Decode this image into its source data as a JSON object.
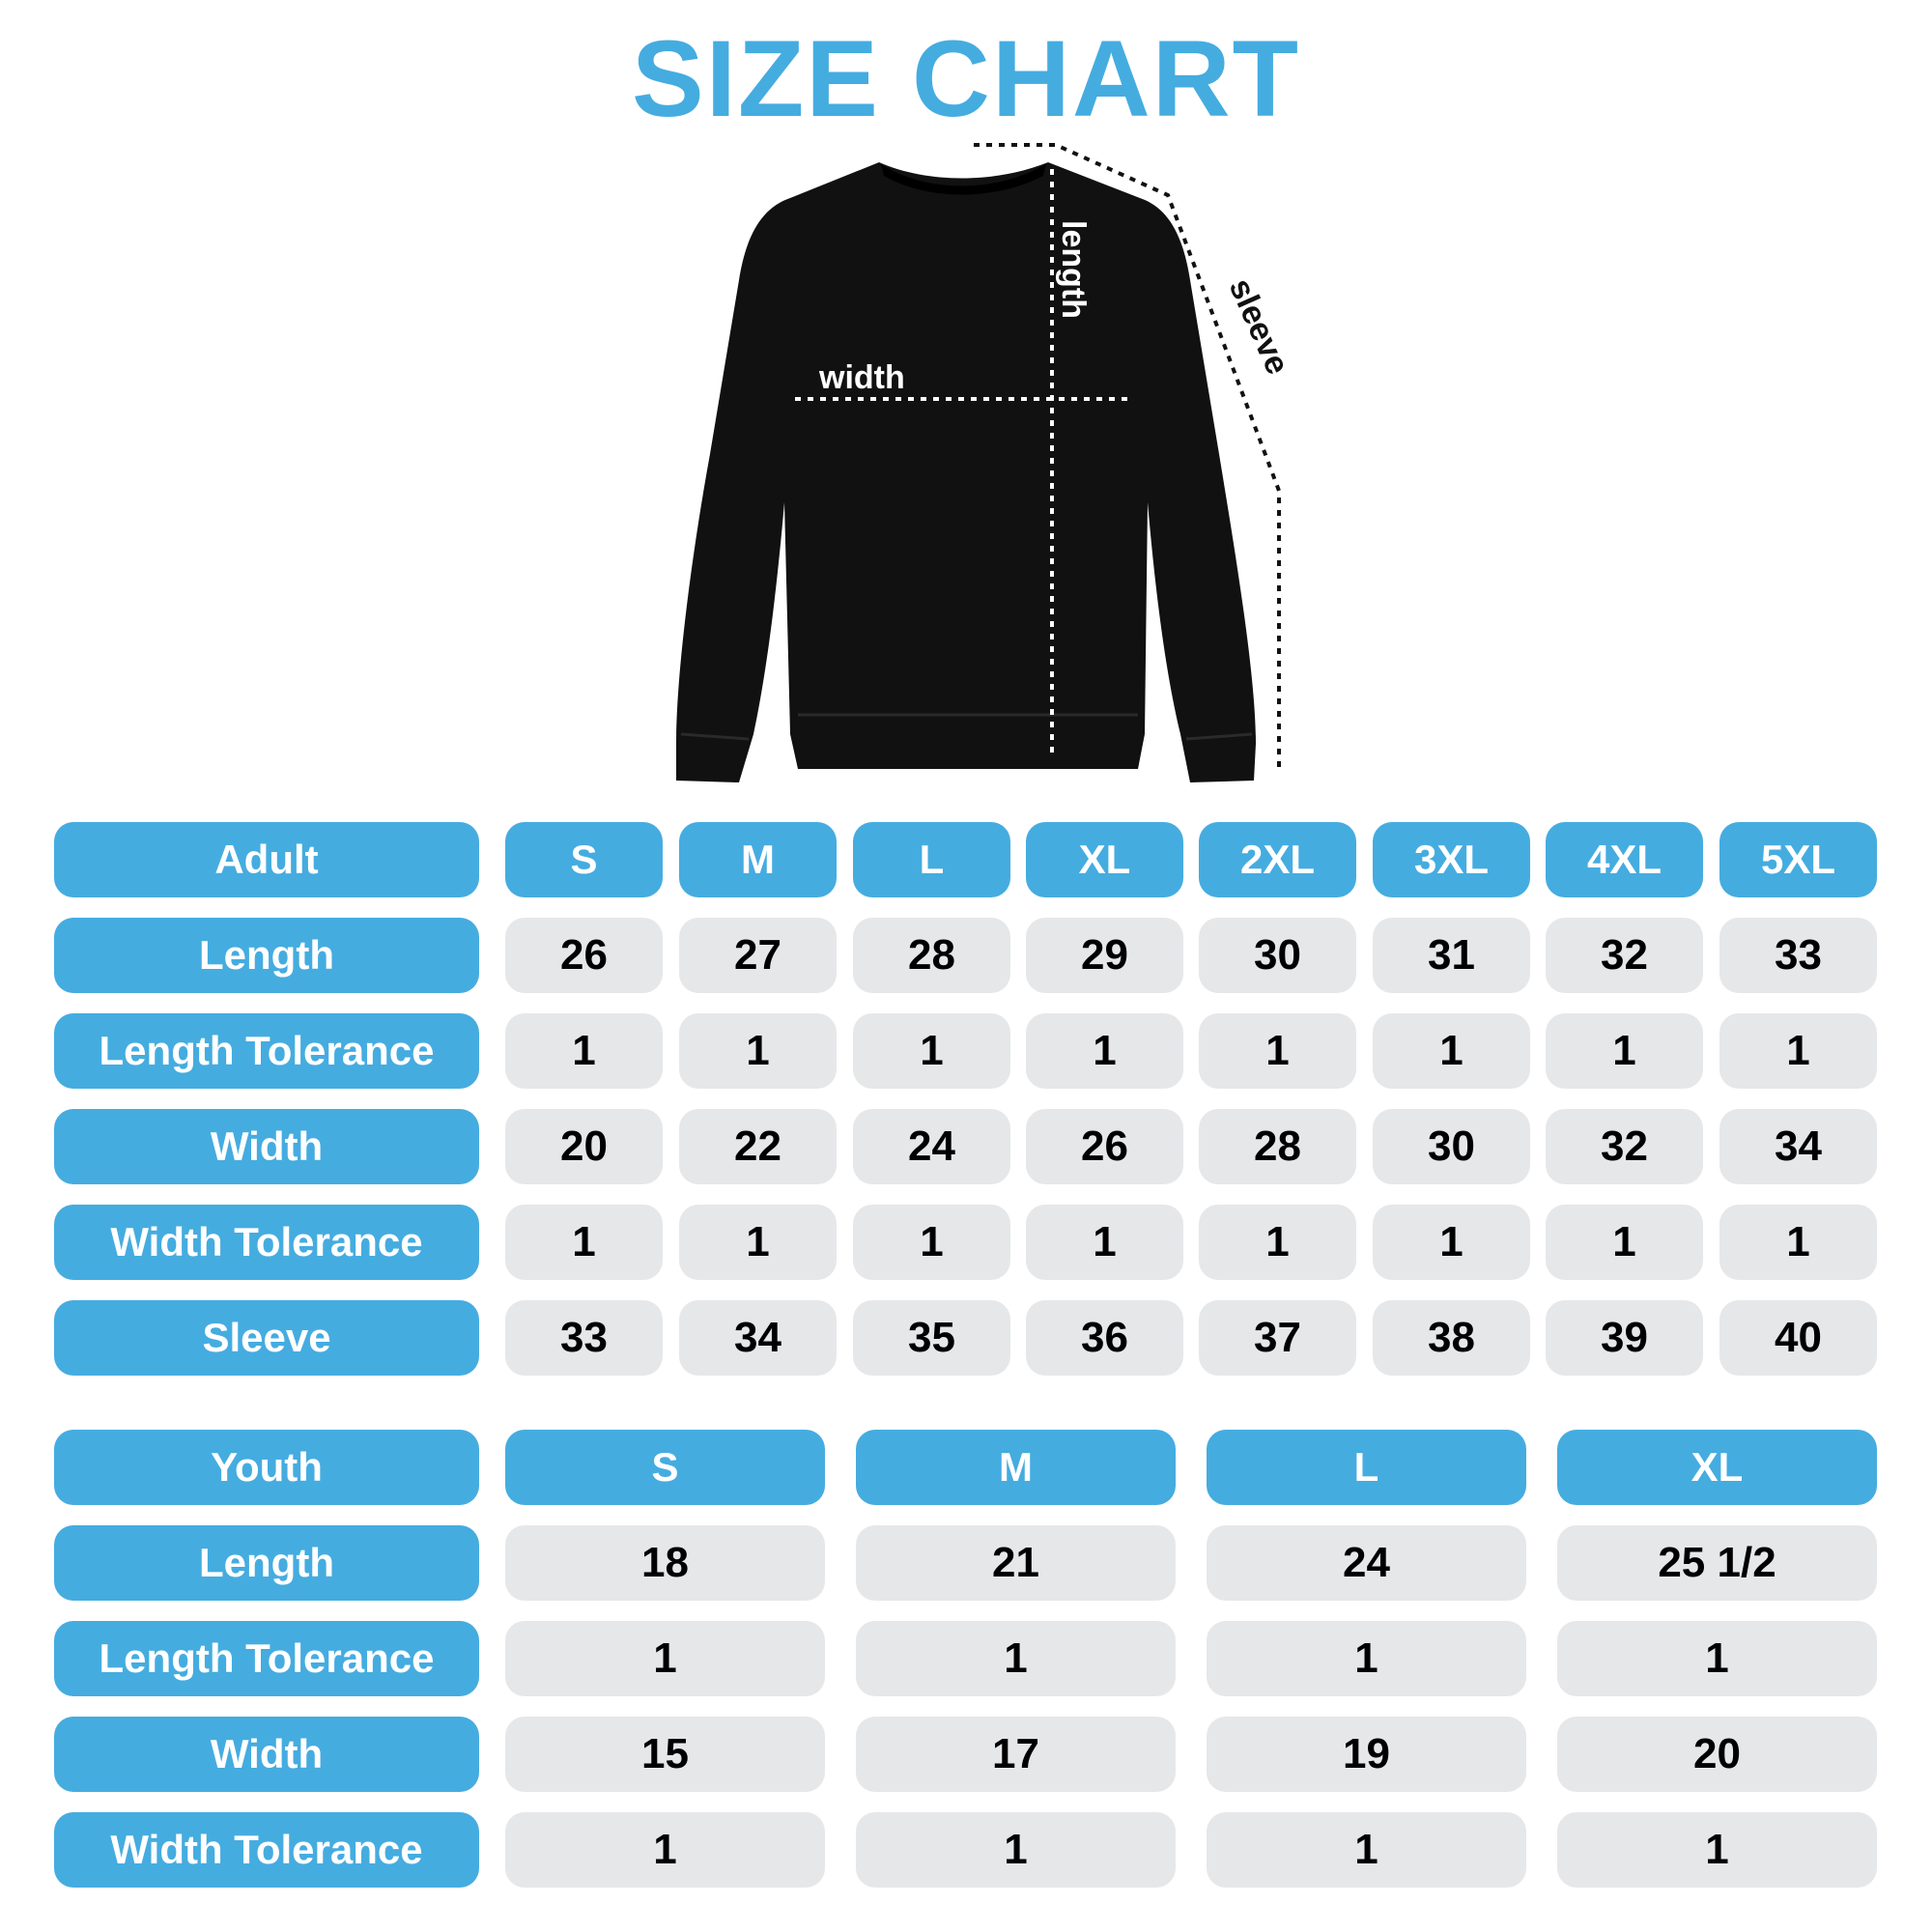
{
  "title": "SIZE CHART",
  "diagram_labels": {
    "width": "width",
    "length": "length",
    "sleeve": "sleeve"
  },
  "colors": {
    "accent": "#45ACE0",
    "cell": "#E6E7E9",
    "garment": "#111111"
  },
  "adult": {
    "header": "Adult",
    "sizes": [
      "S",
      "M",
      "L",
      "XL",
      "2XL",
      "3XL",
      "4XL",
      "5XL"
    ],
    "rows": [
      {
        "label": "Length",
        "values": [
          "26",
          "27",
          "28",
          "29",
          "30",
          "31",
          "32",
          "33"
        ]
      },
      {
        "label": "Length Tolerance",
        "values": [
          "1",
          "1",
          "1",
          "1",
          "1",
          "1",
          "1",
          "1"
        ]
      },
      {
        "label": "Width",
        "values": [
          "20",
          "22",
          "24",
          "26",
          "28",
          "30",
          "32",
          "34"
        ]
      },
      {
        "label": "Width Tolerance",
        "values": [
          "1",
          "1",
          "1",
          "1",
          "1",
          "1",
          "1",
          "1"
        ]
      },
      {
        "label": "Sleeve",
        "values": [
          "33",
          "34",
          "35",
          "36",
          "37",
          "38",
          "39",
          "40"
        ]
      }
    ]
  },
  "youth": {
    "header": "Youth",
    "sizes": [
      "S",
      "M",
      "L",
      "XL"
    ],
    "rows": [
      {
        "label": "Length",
        "values": [
          "18",
          "21",
          "24",
          "25 1/2"
        ]
      },
      {
        "label": "Length Tolerance",
        "values": [
          "1",
          "1",
          "1",
          "1"
        ]
      },
      {
        "label": "Width",
        "values": [
          "15",
          "17",
          "19",
          "20"
        ]
      },
      {
        "label": "Width Tolerance",
        "values": [
          "1",
          "1",
          "1",
          "1"
        ]
      }
    ]
  }
}
